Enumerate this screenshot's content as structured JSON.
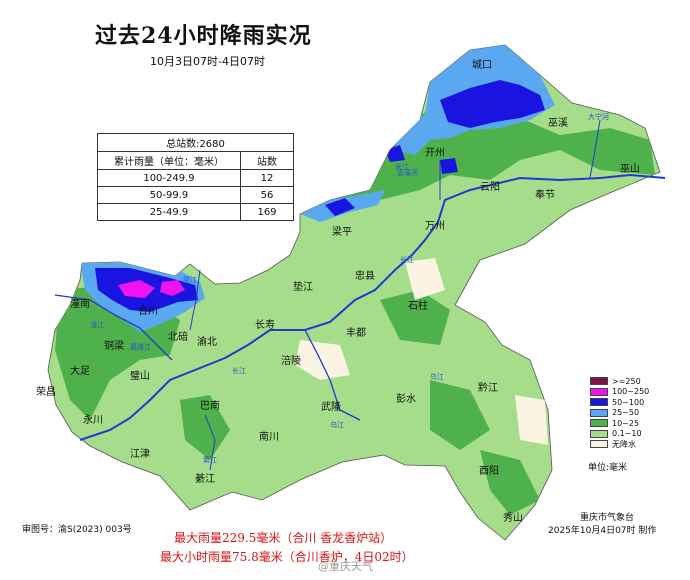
{
  "title": "过去24小时降雨实况",
  "period": "10月3日07时-4日07时",
  "stats_table": {
    "header": "总站数:2680",
    "col_range": "累计雨量（单位：毫米）",
    "col_count": "站数",
    "rows": [
      {
        "range": "100-249.9",
        "count": "12"
      },
      {
        "range": "50-99.9",
        "count": "56"
      },
      {
        "range": "25-49.9",
        "count": "169"
      }
    ]
  },
  "legend": {
    "items": [
      {
        "label": ">=250",
        "color": "#7b1346"
      },
      {
        "label": "100~250",
        "color": "#f012f0"
      },
      {
        "label": "50~100",
        "color": "#1a14e0"
      },
      {
        "label": "25~50",
        "color": "#5aa8f0"
      },
      {
        "label": "10~25",
        "color": "#4fb14c"
      },
      {
        "label": "0.1~10",
        "color": "#a6dd8a"
      },
      {
        "label": "无降水",
        "color": "#fbf4e2"
      }
    ],
    "unit": "单位:毫米"
  },
  "cities": [
    "城口",
    "巫溪",
    "开州",
    "云阳",
    "奉节",
    "巫山",
    "梁平",
    "万州",
    "忠县",
    "垫江",
    "石柱",
    "潼南",
    "合川",
    "北碚",
    "渝北",
    "长寿",
    "丰都",
    "铜梁",
    "大足",
    "璧山",
    "荣昌",
    "涪陵",
    "永川",
    "巴南",
    "武隆",
    "彭水",
    "黔江",
    "江津",
    "南川",
    "綦江",
    "酉阳",
    "秀山"
  ],
  "rivers": [
    "长江",
    "嘉陵江",
    "乌江",
    "涪江",
    "渠江",
    "大宁河",
    "澎溪河",
    "綦江"
  ],
  "map_number": "审图号：渝S(2023) 003号",
  "agency": "重庆市气象台",
  "made_at": "2025年10月4日07时 制作",
  "max_rain": "最大雨量229.5毫米（合川 香龙香炉站）",
  "max_hourly": "最大小时雨量75.8毫米（合川香炉，4日02时）",
  "watermark": "@重庆天气"
}
